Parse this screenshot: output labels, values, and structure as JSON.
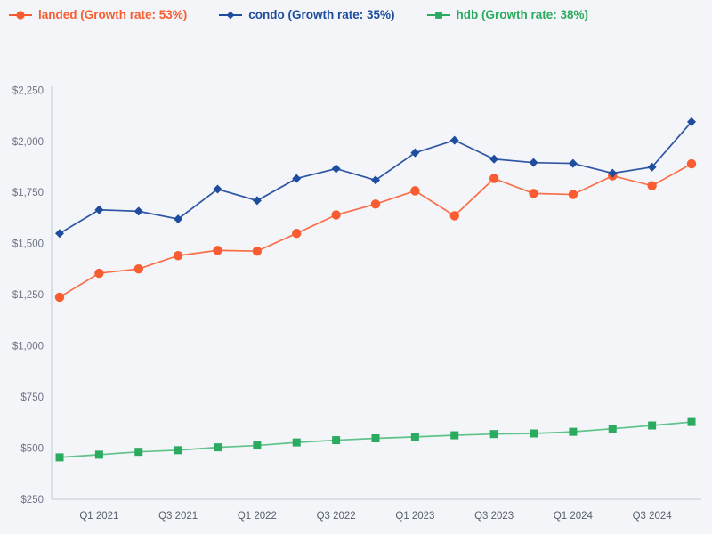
{
  "colors": {
    "background": "#f4f5f8",
    "axis": "#c9d2e0",
    "y_tick_label": "#6b7384",
    "x_tick_label": "#565f6d",
    "landed": "#f95c30",
    "condo": "#1e4c9e",
    "hdb": "#2aab60"
  },
  "legend": {
    "items": [
      {
        "id": "landed",
        "label": "landed (Growth rate: 53%)"
      },
      {
        "id": "condo",
        "label": "condo (Growth rate: 35%)"
      },
      {
        "id": "hdb",
        "label": "hdb (Growth rate: 38%)"
      }
    ]
  },
  "chart_data": {
    "type": "line",
    "title": "",
    "xlabel": "",
    "ylabel": "",
    "grid": false,
    "legend_position": "top-left",
    "ylim": [
      250,
      2250
    ],
    "categories": [
      "Q4 2020",
      "Q1 2021",
      "Q2 2021",
      "Q3 2021",
      "Q4 2021",
      "Q1 2022",
      "Q2 2022",
      "Q3 2022",
      "Q4 2022",
      "Q1 2023",
      "Q2 2023",
      "Q3 2023",
      "Q4 2023",
      "Q1 2024",
      "Q2 2024",
      "Q3 2024",
      "Q4 2024"
    ],
    "x_tick_labels": [
      "Q1 2021",
      "Q3 2021",
      "Q1 2022",
      "Q3 2022",
      "Q1 2023",
      "Q3 2023",
      "Q1 2024",
      "Q3 2024"
    ],
    "x_tick_indices": [
      1,
      3,
      5,
      7,
      9,
      11,
      13,
      15
    ],
    "y_ticks": [
      250,
      500,
      750,
      1000,
      1250,
      1500,
      1750,
      2000,
      2250
    ],
    "y_tick_labels": [
      "$250",
      "$500",
      "$750",
      "$1,000",
      "$1,250",
      "$1,500",
      "$1,750",
      "$2,000",
      "$2,250"
    ],
    "series": [
      {
        "name": "landed",
        "growth_rate": "53%",
        "marker": "circle",
        "color": "#f95c30",
        "line_color": "#f96e48",
        "values": [
          1238,
          1355,
          1376,
          1441,
          1467,
          1463,
          1550,
          1640,
          1693,
          1758,
          1636,
          1818,
          1745,
          1740,
          1831,
          1783,
          1890
        ]
      },
      {
        "name": "condo",
        "growth_rate": "35%",
        "marker": "diamond",
        "color": "#1e4c9e",
        "line_color": "#2e56a4",
        "values": [
          1550,
          1665,
          1658,
          1620,
          1766,
          1710,
          1818,
          1866,
          1810,
          1944,
          2005,
          1913,
          1896,
          1892,
          1844,
          1874,
          2095
        ]
      },
      {
        "name": "hdb",
        "growth_rate": "38%",
        "marker": "square",
        "color": "#2aab60",
        "line_color": "#5ec389",
        "values": [
          455,
          468,
          482,
          490,
          504,
          513,
          528,
          539,
          548,
          555,
          563,
          569,
          572,
          580,
          595,
          611,
          628
        ]
      }
    ]
  }
}
